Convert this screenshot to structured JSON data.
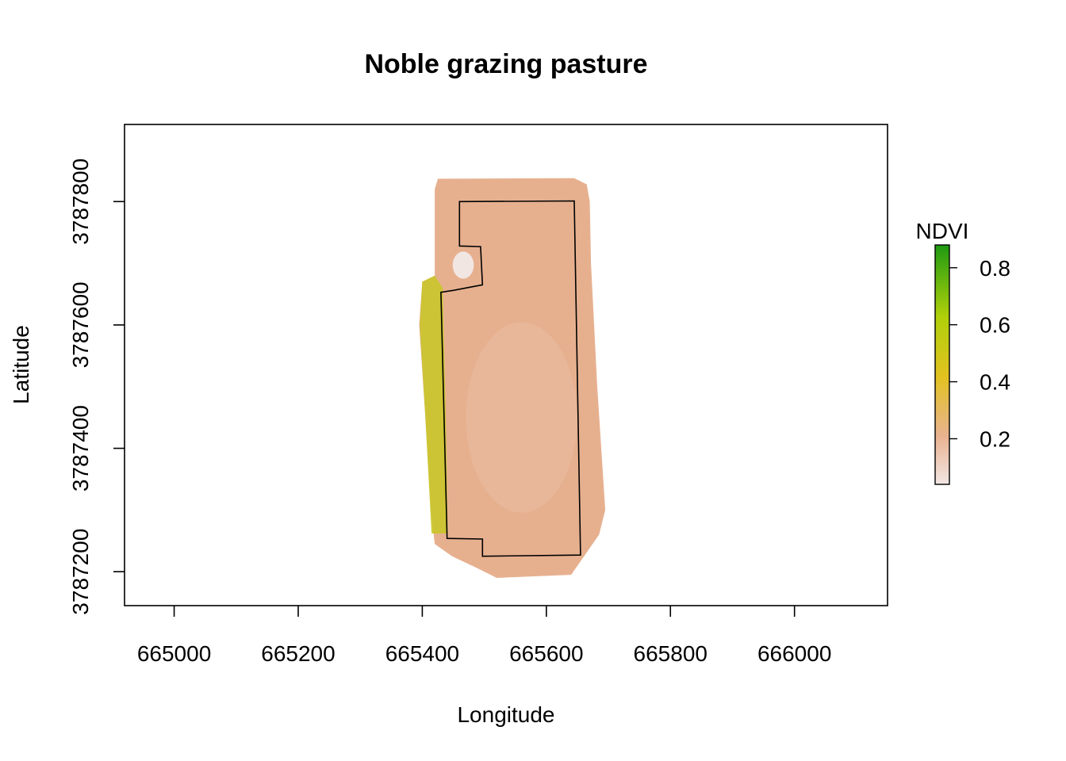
{
  "title": "Noble grazing pasture",
  "xlabel": "Longitude",
  "ylabel": "Latitude",
  "legend_title": "NDVI",
  "colors": {
    "ndvi_low": "#f2e6e3",
    "ndvi_mid_low": "#e9b290",
    "ndvi_mid": "#e2c220",
    "ndvi_mid_high": "#b0d00a",
    "ndvi_high": "#1e9a12",
    "boundary": "#000000"
  },
  "chart_data": {
    "type": "heatmap",
    "title": "Noble grazing pasture",
    "xlabel": "Longitude",
    "ylabel": "Latitude",
    "xlim": [
      664920,
      666150
    ],
    "ylim": [
      3787145,
      3787925
    ],
    "x_ticks": [
      665000,
      665200,
      665400,
      665600,
      665800,
      666000
    ],
    "y_ticks": [
      3787200,
      3787400,
      3787600,
      3787800
    ],
    "x_tick_labels": [
      "665000",
      "665200",
      "665400",
      "665600",
      "665800",
      "666000"
    ],
    "y_tick_labels": [
      "3787200",
      "3787400",
      "3787600",
      "3787800"
    ],
    "legend": {
      "title": "NDVI",
      "range": [
        0.04,
        0.88
      ],
      "ticks": [
        0.2,
        0.4,
        0.6,
        0.8
      ],
      "tick_labels": [
        "0.2",
        "0.4",
        "0.6",
        "0.8"
      ],
      "position": "right"
    },
    "raster_extent": [
      [
        665425,
        3787837
      ],
      [
        665645,
        3787838
      ],
      [
        665665,
        3787828
      ],
      [
        665670,
        3787800
      ],
      [
        665672,
        3787700
      ],
      [
        665682,
        3787500
      ],
      [
        665695,
        3787300
      ],
      [
        665685,
        3787260
      ],
      [
        665640,
        3787195
      ],
      [
        665520,
        3787190
      ],
      [
        665490,
        3787205
      ],
      [
        665448,
        3787225
      ],
      [
        665420,
        3787245
      ],
      [
        665414,
        3787300
      ],
      [
        665405,
        3787450
      ],
      [
        665395,
        3787600
      ],
      [
        665400,
        3787670
      ],
      [
        665420,
        3787680
      ],
      [
        665420,
        3787820
      ]
    ],
    "pasture_boundary": [
      [
        665460,
        3787800
      ],
      [
        665645,
        3787801
      ],
      [
        665655,
        3787227
      ],
      [
        665497,
        3787225
      ],
      [
        665497,
        3787253
      ],
      [
        665440,
        3787254
      ],
      [
        665430,
        3787653
      ],
      [
        665450,
        3787656
      ],
      [
        665497,
        3787665
      ],
      [
        665494,
        3787727
      ],
      [
        665460,
        3787728
      ]
    ],
    "green_strip": [
      [
        665420,
        3787680
      ],
      [
        665433,
        3787660
      ],
      [
        665438,
        3787450
      ],
      [
        665441,
        3787262
      ],
      [
        665415,
        3787262
      ],
      [
        665405,
        3787450
      ],
      [
        665396,
        3787600
      ],
      [
        665400,
        3787670
      ]
    ],
    "bare_patch": {
      "center": [
        665466,
        3787697
      ],
      "radius_x": 17,
      "radius_y": 22
    }
  }
}
